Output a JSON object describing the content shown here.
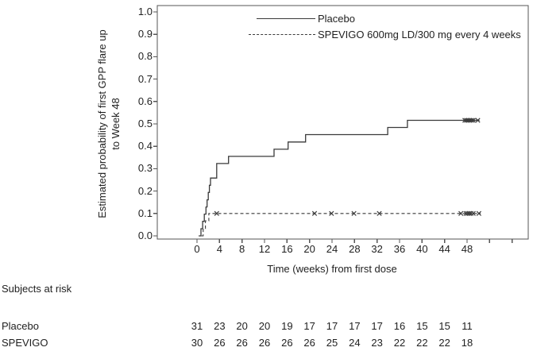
{
  "figure": {
    "x_axis_title": "Time (weeks) from first dose",
    "y_axis_title_line1": "Estimated probability of first GPP flare up",
    "y_axis_title_line2": "to Week 48"
  },
  "colors": {
    "line": "#3a3a3a",
    "frame": "#555555",
    "text": "#1f1f1f"
  },
  "chart_data": {
    "type": "line",
    "subtype": "kaplan-meier-step",
    "xlabel": "Time (weeks) from first dose",
    "ylabel": "Estimated probability of first GPP flare up to Week 48",
    "ylim": [
      0.0,
      1.0
    ],
    "xlim_weeks_visible": [
      -7,
      59
    ],
    "grid": false,
    "legend_position": "top-right-inside",
    "x_ticks_labeled": [
      0,
      4,
      8,
      12,
      16,
      20,
      24,
      28,
      32,
      36,
      40,
      44,
      48
    ],
    "x_tick_labels": [
      "0",
      "4",
      "8",
      "12",
      "16",
      "20",
      "24",
      "28",
      "32",
      "36",
      "40",
      "44",
      "48"
    ],
    "x_ticks_unlabeled": [
      52,
      56
    ],
    "y_ticks": [
      0.0,
      0.1,
      0.2,
      0.3,
      0.4,
      0.5,
      0.6,
      0.7,
      0.8,
      0.9,
      1.0
    ],
    "y_tick_labels": [
      "0.0",
      "0.1",
      "0.2",
      "0.3",
      "0.4",
      "0.5",
      "0.6",
      "0.7",
      "0.8",
      "0.9",
      "1.0"
    ],
    "series": [
      {
        "name": "Placebo",
        "style": "solid",
        "steps": [
          [
            0.3,
            0.0
          ],
          [
            0.7,
            0.032
          ],
          [
            1.0,
            0.065
          ],
          [
            1.3,
            0.097
          ],
          [
            1.6,
            0.129
          ],
          [
            1.8,
            0.161
          ],
          [
            2.0,
            0.194
          ],
          [
            2.2,
            0.226
          ],
          [
            2.4,
            0.258
          ],
          [
            3.5,
            0.323
          ],
          [
            5.6,
            0.355
          ],
          [
            13.7,
            0.387
          ],
          [
            16.2,
            0.419
          ],
          [
            19.3,
            0.452
          ],
          [
            33.9,
            0.484
          ],
          [
            37.4,
            0.516
          ]
        ],
        "end_week": 50.2,
        "censor_level": 0.516,
        "censor_weeks": [
          47.6,
          47.9,
          48.2,
          48.5,
          48.8,
          49.1,
          49.9
        ]
      },
      {
        "name": "SPEVIGO 600mg LD/300 mg every 4 weeks",
        "style": "dashed",
        "steps": [
          [
            0.8,
            0.0
          ],
          [
            1.1,
            0.033
          ],
          [
            1.5,
            0.067
          ],
          [
            2.1,
            0.1
          ]
        ],
        "end_week": 50.4,
        "censor_level": 0.1,
        "censor_weeks": [
          3.5,
          20.9,
          23.9,
          27.9,
          32.4,
          46.9,
          47.8,
          48.1,
          48.4,
          48.7,
          49.1,
          50.1
        ]
      }
    ]
  },
  "risk_table": {
    "heading": "Subjects at risk",
    "weeks": [
      0,
      4,
      8,
      12,
      16,
      20,
      24,
      28,
      32,
      36,
      40,
      44,
      48
    ],
    "rows": [
      {
        "label": "Placebo",
        "values": [
          31,
          23,
          20,
          20,
          19,
          17,
          17,
          17,
          17,
          16,
          15,
          15,
          11
        ]
      },
      {
        "label": "SPEVIGO",
        "values": [
          30,
          26,
          26,
          26,
          26,
          26,
          25,
          24,
          23,
          22,
          22,
          22,
          18
        ]
      }
    ]
  }
}
